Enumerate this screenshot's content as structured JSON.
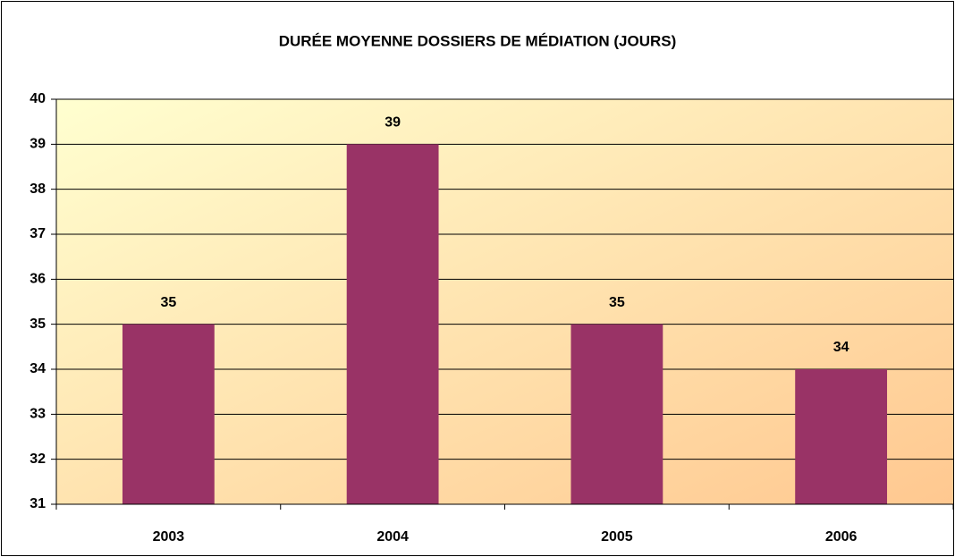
{
  "chart_data": {
    "type": "bar",
    "title": "DURÉE MOYENNE DOSSIERS DE MÉDIATION (JOURS)",
    "categories": [
      "2003",
      "2004",
      "2005",
      "2006"
    ],
    "values": [
      35,
      39,
      35,
      34
    ],
    "color": "#993366",
    "ylim": [
      31,
      40
    ],
    "yticks": [
      31,
      32,
      33,
      34,
      35,
      36,
      37,
      38,
      39,
      40
    ],
    "grid": true
  }
}
